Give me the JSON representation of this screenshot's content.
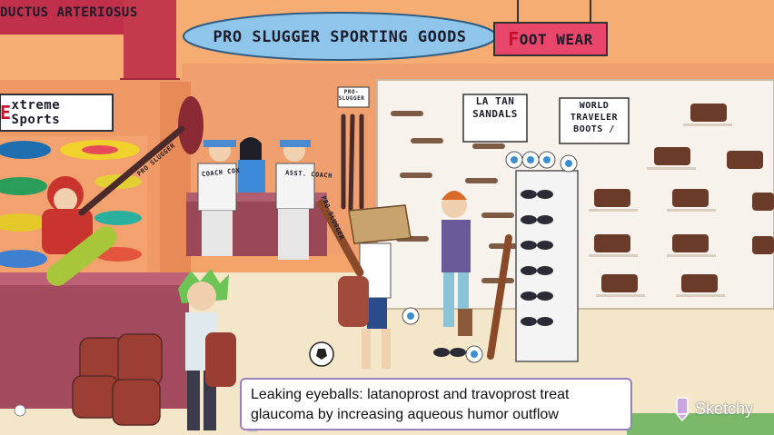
{
  "scene": {
    "signs": {
      "ductus": "DUCTUS ARTERIOSUS",
      "store": "PRO SLUGGER SPORTING GOODS",
      "footwear_first": "F",
      "footwear_rest": "OOT WEAR",
      "extreme_first": "E",
      "extreme_rest": "xtreme Sports",
      "pro_slugger_small": "PRO- SLUGGER",
      "la_tan": "LA TAN SANDALS",
      "world_traveler": "WORLD TRAVELER BOOTS /"
    },
    "shirts": {
      "coach": "COACH COX",
      "assistant": "ASST. COACH"
    },
    "bat_labels": {
      "skater_bat": "PRO SLUGGER",
      "boy_bat": "PRO SLUGGER"
    }
  },
  "caption": {
    "line1": "Leaking eyeballs: latanoprost and travoprost treat",
    "line2": "glaucoma by increasing aqueous humor outflow"
  },
  "logo": {
    "text": "Sketchy",
    "icon": "sketchy-pencil-icon"
  },
  "colors": {
    "wall": "#f3a26a",
    "floor": "#f4e6c8",
    "caption_border": "#9c7fc0",
    "accent_red": "#c8102e",
    "store_sign": "#8fc5ea"
  }
}
